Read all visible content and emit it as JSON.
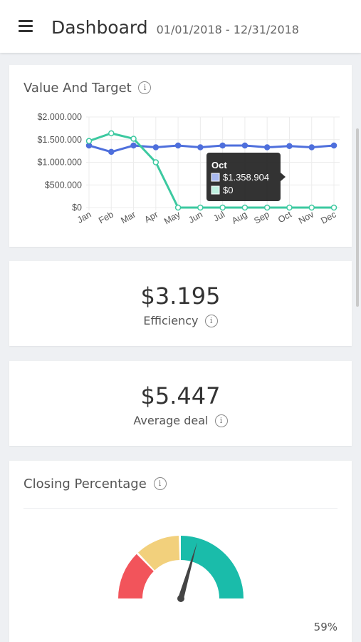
{
  "header": {
    "title": "Dashboard",
    "date_range": "01/01/2018 - 12/31/2018",
    "menu_icon": "hamburger-menu-icon"
  },
  "value_target": {
    "title": "Value And Target",
    "info_icon": "info-icon",
    "tooltip": {
      "title": "Oct",
      "value1": "$1.358.904",
      "value2": "$0"
    }
  },
  "efficiency": {
    "value": "$3.195",
    "label": "Efficiency"
  },
  "average_deal": {
    "value": "$5.447",
    "label": "Average deal"
  },
  "closing": {
    "title": "Closing Percentage",
    "value_label": "59%",
    "value": 59
  },
  "colors": {
    "value_line": "#4e6fdc",
    "target_line": "#3cc9a0",
    "gauge_red": "#f2545b",
    "gauge_yellow": "#f2d07c",
    "gauge_teal": "#1abcaa",
    "needle": "#444444"
  },
  "chart_data": {
    "type": "line",
    "categories": [
      "Jan",
      "Feb",
      "Mar",
      "Apr",
      "May",
      "Jun",
      "Jul",
      "Aug",
      "Sep",
      "Oct",
      "Nov",
      "Dec"
    ],
    "y_ticks": [
      "$2.000.000",
      "$1.500.000",
      "$1.000.000",
      "$500.000",
      "$0"
    ],
    "ylim": [
      0,
      2000000
    ],
    "series": [
      {
        "values": [
          1370000,
          1230000,
          1370000,
          1330000,
          1370000,
          1330000,
          1370000,
          1370000,
          1330000,
          1358904,
          1330000,
          1370000
        ],
        "color": "#4e6fdc"
      },
      {
        "values": [
          1470000,
          1640000,
          1520000,
          1000000,
          0,
          0,
          0,
          0,
          0,
          0,
          0,
          0
        ],
        "color": "#3cc9a0"
      }
    ]
  }
}
